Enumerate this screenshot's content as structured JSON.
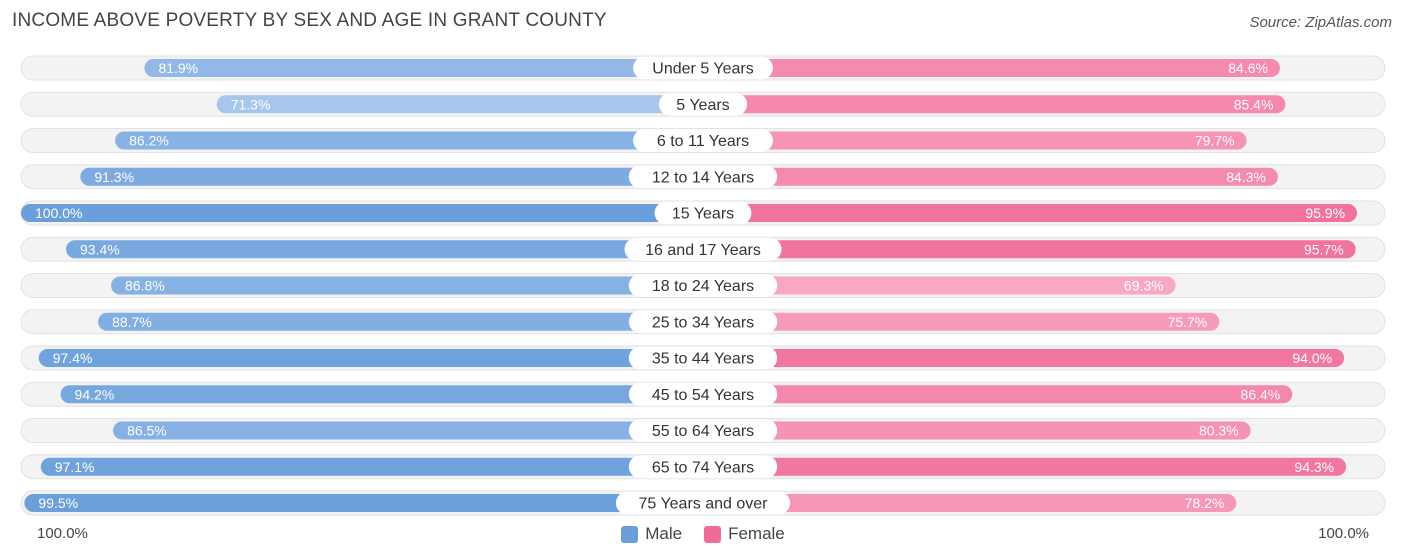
{
  "title": "INCOME ABOVE POVERTY BY SEX AND AGE IN GRANT COUNTY",
  "source": "Source: ZipAtlas.com",
  "axis": {
    "left_label": "100.0%",
    "right_label": "100.0%"
  },
  "legend": {
    "male_label": "Male",
    "female_label": "Female"
  },
  "colors": {
    "male_strong": "#6a9fdb",
    "male_light": "#aac8ee",
    "female_strong": "#f06b97",
    "female_light": "#f8a8c2",
    "track": "#f2f2f2"
  },
  "chart_data": {
    "type": "bar",
    "orientation": "horizontal-diverging",
    "title": "INCOME ABOVE POVERTY BY SEX AND AGE IN GRANT COUNTY",
    "categories": [
      "Under 5 Years",
      "5 Years",
      "6 to 11 Years",
      "12 to 14 Years",
      "15 Years",
      "16 and 17 Years",
      "18 to 24 Years",
      "25 to 34 Years",
      "35 to 44 Years",
      "45 to 54 Years",
      "55 to 64 Years",
      "65 to 74 Years",
      "75 Years and over"
    ],
    "series": [
      {
        "name": "Male",
        "values": [
          81.9,
          71.3,
          86.2,
          91.3,
          100.0,
          93.4,
          86.8,
          88.7,
          97.4,
          94.2,
          86.5,
          97.1,
          99.5
        ],
        "labels": [
          "81.9%",
          "71.3%",
          "86.2%",
          "91.3%",
          "100.0%",
          "93.4%",
          "86.8%",
          "88.7%",
          "97.4%",
          "94.2%",
          "86.5%",
          "97.1%",
          "99.5%"
        ]
      },
      {
        "name": "Female",
        "values": [
          84.6,
          85.4,
          79.7,
          84.3,
          95.9,
          95.7,
          69.3,
          75.7,
          94.0,
          86.4,
          80.3,
          94.3,
          78.2
        ],
        "labels": [
          "84.6%",
          "85.4%",
          "79.7%",
          "84.3%",
          "95.9%",
          "95.7%",
          "69.3%",
          "75.7%",
          "94.0%",
          "86.4%",
          "80.3%",
          "94.3%",
          "78.2%"
        ]
      }
    ],
    "xlim": [
      0,
      100
    ],
    "legend_position": "bottom-center"
  }
}
